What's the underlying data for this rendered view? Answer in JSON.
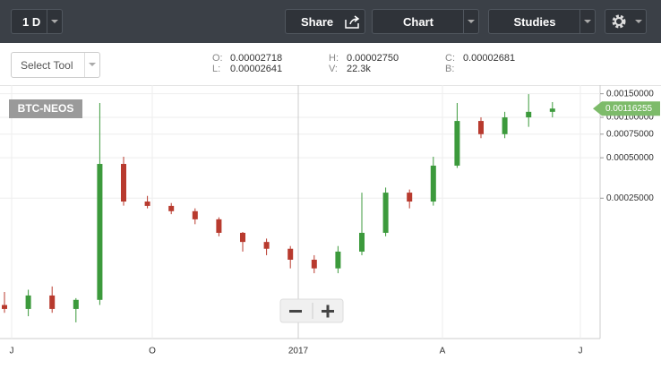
{
  "toolbar": {
    "interval": "1 D",
    "share": "Share",
    "chart": "Chart",
    "studies": "Studies"
  },
  "select_tool": "Select Tool",
  "ohlc": {
    "o_label": "O:",
    "o": "0.00002718",
    "l_label": "L:",
    "l": "0.00002641",
    "h_label": "H:",
    "h": "0.00002750",
    "v_label": "V:",
    "v": "22.3k",
    "c_label": "C:",
    "c": "0.00002681",
    "b_label": "B:"
  },
  "chart_data": {
    "type": "candlestick",
    "symbol": "BTC-NEOS",
    "open": [
      4e-05,
      3.74e-05,
      4.71e-05,
      3.74e-05,
      4.37e-05,
      0.00045,
      0.000236,
      0.000219,
      0.0002,
      0.000174,
      0.000138,
      0.000118,
      0.000105,
      8.7e-05,
      7.5e-05,
      0.0001,
      0.000138,
      0.000275,
      0.000236,
      0.000437,
      0.00094,
      0.00075,
      0.001,
      0.0011
    ],
    "high": [
      5e-05,
      5.2e-05,
      5.5e-05,
      4.5e-05,
      0.00128,
      0.000509,
      0.00026,
      0.00023,
      0.00021,
      0.00018,
      0.00014,
      0.000125,
      0.00011,
      9.4e-05,
      0.00011,
      0.000275,
      0.0003,
      0.00029,
      0.000509,
      0.00128,
      0.001,
      0.0011,
      0.00149,
      0.0013
    ],
    "low": [
      3.5e-05,
      3.3e-05,
      3.5e-05,
      2.97e-05,
      4e-05,
      0.00022,
      0.00021,
      0.00019,
      0.00016,
      0.00013,
      0.0001,
      9.4e-05,
      7.5e-05,
      6.9e-05,
      6.9e-05,
      9.4e-05,
      0.00013,
      0.00021,
      0.00022,
      0.00042,
      0.0007,
      0.0007,
      0.00085,
      0.001
    ],
    "close": [
      3.74e-05,
      4.71e-05,
      3.74e-05,
      4.37e-05,
      0.00045,
      0.000236,
      0.000219,
      0.0002,
      0.000174,
      0.000138,
      0.000118,
      0.000105,
      8.7e-05,
      7.5e-05,
      0.0001,
      0.000138,
      0.000275,
      0.000236,
      0.000437,
      0.00094,
      0.00075,
      0.001,
      0.0011,
      0.00116255
    ],
    "last_price": 0.00116255,
    "ylim": [
      2.25e-05,
      0.00174
    ],
    "log_scale": true,
    "yticks": [
      {
        "value": 0.0015,
        "label": "0.00150000"
      },
      {
        "value": 0.001,
        "label": "0.00100000"
      },
      {
        "value": 0.00075,
        "label": "0.00075000"
      },
      {
        "value": 0.0005,
        "label": "0.00050000"
      },
      {
        "value": 0.00025,
        "label": "0.00025000"
      }
    ],
    "xticks": [
      "J",
      "O",
      "2017",
      "A",
      "J"
    ],
    "grid": true,
    "colors": {
      "up": "#3c9a3c",
      "down": "#b83a2e",
      "last": "#7dbb6a"
    }
  }
}
